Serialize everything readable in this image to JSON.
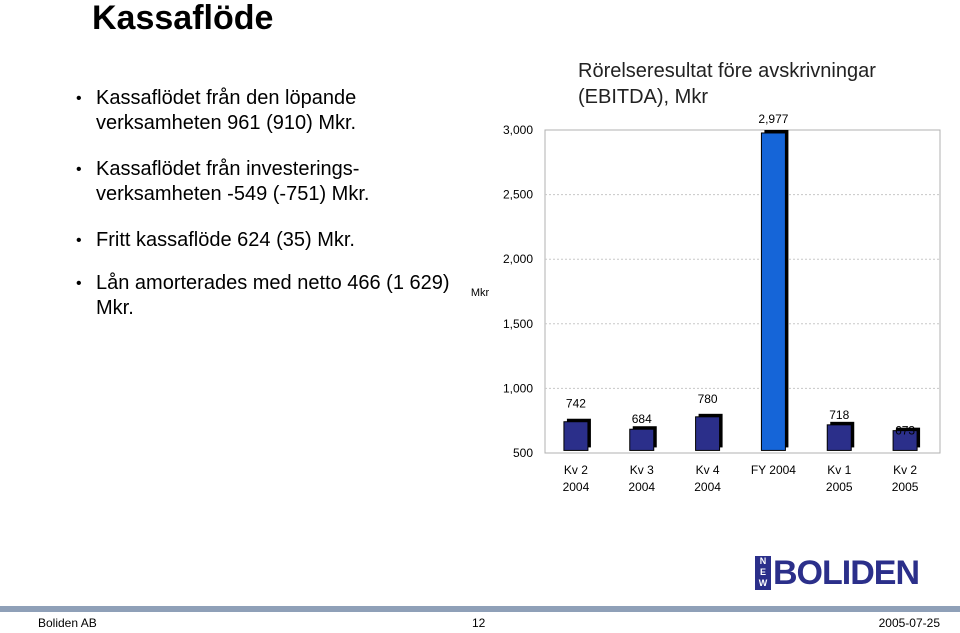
{
  "slide": {
    "title": "Kassaflöde",
    "bullets": [
      "Kassaflödet från den löpande verksamheten 961 (910) Mkr.",
      "Kassaflödet från investerings-verksamheten -549 (-751) Mkr.",
      "Fritt kassaflöde 624 (35) Mkr.",
      "Lån amorterades med netto 466 (1 629) Mkr."
    ]
  },
  "chart_data": {
    "type": "bar",
    "title": "Rörelseresultat före avskrivningar (EBITDA), Mkr",
    "ylabel": "Mkr",
    "xlabel": "",
    "categories": [
      [
        "Kv 2",
        "2004"
      ],
      [
        "Kv 3",
        "2004"
      ],
      [
        "Kv 4",
        "2004"
      ],
      [
        "FY 2004",
        ""
      ],
      [
        "Kv 1",
        "2005"
      ],
      [
        "Kv 2",
        "2005"
      ]
    ],
    "values": [
      742,
      684,
      780,
      2977,
      718,
      673
    ],
    "value_labels": [
      "742",
      "684",
      "780",
      "2,977",
      "718",
      "673"
    ],
    "ylim": [
      500,
      3000
    ],
    "yticks": [
      "500",
      "1,000",
      "1,500",
      "2,000",
      "2,500",
      "3,000"
    ],
    "grid": true,
    "bar_colors": [
      "#2b2f8a",
      "#2b2f8a",
      "#2b2f8a",
      "#1565d8",
      "#2b2f8a",
      "#2b2f8a"
    ]
  },
  "logo": {
    "mark": [
      "N",
      "E",
      "W"
    ],
    "text": "BOLIDEN"
  },
  "footer": {
    "company": "Boliden AB",
    "page": "12",
    "date": "2005-07-25"
  },
  "colors": {
    "bar": "#2b2f8a",
    "highlight": "#1565d8",
    "footer_band": "#8fa0b8"
  }
}
